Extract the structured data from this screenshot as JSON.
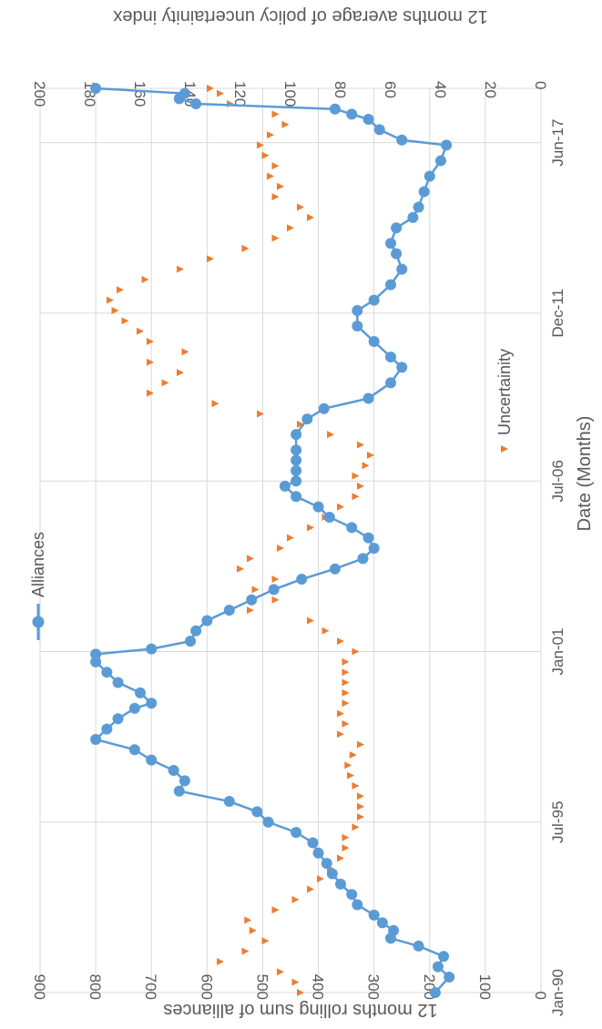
{
  "chart_data": {
    "type": "line",
    "orientation": "rotated-90",
    "xlabel": "Date (Months)",
    "x_ticks": [
      "Jan-90",
      "Jul-95",
      "Jan-01",
      "Jul-06",
      "Dec-11",
      "Jun-17"
    ],
    "x_tick_months": [
      0,
      66,
      132,
      198,
      263,
      329
    ],
    "x_range_months": [
      0,
      350
    ],
    "y_left": {
      "label": "12 months rolling sum of alliances",
      "min": 0,
      "max": 900,
      "step": 100,
      "ticks": [
        "0",
        "100",
        "200",
        "300",
        "400",
        "500",
        "600",
        "700",
        "800",
        "900"
      ]
    },
    "y_right": {
      "label": "12 months average of policy  uncertainity index",
      "min": 0,
      "max": 200,
      "step": 20,
      "ticks": [
        "0",
        "20",
        "40",
        "60",
        "80",
        "100",
        "120",
        "140",
        "160",
        "180",
        "200"
      ]
    },
    "grid": true,
    "legend_position": "top-left",
    "series": [
      {
        "name": "Alliances",
        "axis": "left",
        "style": "line-circle",
        "color": "#5B9BD5",
        "points": [
          [
            0,
            190
          ],
          [
            6,
            165
          ],
          [
            10,
            185
          ],
          [
            14,
            175
          ],
          [
            18,
            220
          ],
          [
            21,
            270
          ],
          [
            24,
            265
          ],
          [
            27,
            285
          ],
          [
            30,
            300
          ],
          [
            34,
            330
          ],
          [
            38,
            340
          ],
          [
            42,
            360
          ],
          [
            46,
            375
          ],
          [
            50,
            385
          ],
          [
            54,
            400
          ],
          [
            58,
            410
          ],
          [
            62,
            440
          ],
          [
            66,
            490
          ],
          [
            70,
            510
          ],
          [
            74,
            560
          ],
          [
            78,
            650
          ],
          [
            82,
            640
          ],
          [
            86,
            660
          ],
          [
            90,
            700
          ],
          [
            94,
            730
          ],
          [
            98,
            800
          ],
          [
            102,
            780
          ],
          [
            106,
            760
          ],
          [
            110,
            730
          ],
          [
            112,
            700
          ],
          [
            116,
            720
          ],
          [
            120,
            760
          ],
          [
            124,
            780
          ],
          [
            128,
            800
          ],
          [
            131,
            800
          ],
          [
            133,
            700
          ],
          [
            136,
            630
          ],
          [
            140,
            620
          ],
          [
            144,
            600
          ],
          [
            148,
            560
          ],
          [
            152,
            520
          ],
          [
            156,
            480
          ],
          [
            160,
            430
          ],
          [
            164,
            370
          ],
          [
            168,
            320
          ],
          [
            172,
            300
          ],
          [
            176,
            310
          ],
          [
            180,
            340
          ],
          [
            184,
            380
          ],
          [
            188,
            400
          ],
          [
            192,
            440
          ],
          [
            196,
            460
          ],
          [
            198,
            440
          ],
          [
            202,
            440
          ],
          [
            206,
            440
          ],
          [
            210,
            440
          ],
          [
            216,
            440
          ],
          [
            222,
            420
          ],
          [
            226,
            390
          ],
          [
            230,
            310
          ],
          [
            236,
            270
          ],
          [
            242,
            250
          ],
          [
            246,
            270
          ],
          [
            252,
            300
          ],
          [
            258,
            330
          ],
          [
            264,
            330
          ],
          [
            268,
            300
          ],
          [
            274,
            270
          ],
          [
            280,
            250
          ],
          [
            286,
            260
          ],
          [
            290,
            270
          ],
          [
            296,
            260
          ],
          [
            300,
            230
          ],
          [
            304,
            220
          ],
          [
            310,
            210
          ],
          [
            316,
            200
          ],
          [
            322,
            180
          ],
          [
            328,
            170
          ],
          [
            330,
            250
          ],
          [
            334,
            290
          ],
          [
            338,
            310
          ],
          [
            340,
            340
          ],
          [
            342,
            370
          ],
          [
            344,
            620
          ],
          [
            346,
            650
          ],
          [
            348,
            640
          ],
          [
            350,
            800
          ]
        ]
      },
      {
        "name": "Uncertainity",
        "axis": "right",
        "style": "triangle-marker",
        "color": "#ED7D31",
        "points": [
          [
            0,
            96
          ],
          [
            4,
            98
          ],
          [
            8,
            104
          ],
          [
            12,
            128
          ],
          [
            16,
            118
          ],
          [
            20,
            110
          ],
          [
            24,
            115
          ],
          [
            28,
            117
          ],
          [
            32,
            106
          ],
          [
            36,
            98
          ],
          [
            40,
            92
          ],
          [
            44,
            88
          ],
          [
            48,
            84
          ],
          [
            52,
            80
          ],
          [
            56,
            78
          ],
          [
            60,
            78
          ],
          [
            64,
            74
          ],
          [
            68,
            72
          ],
          [
            72,
            72
          ],
          [
            76,
            72
          ],
          [
            80,
            74
          ],
          [
            84,
            76
          ],
          [
            88,
            77
          ],
          [
            92,
            75
          ],
          [
            96,
            72
          ],
          [
            100,
            80
          ],
          [
            104,
            78
          ],
          [
            108,
            80
          ],
          [
            112,
            78
          ],
          [
            116,
            78
          ],
          [
            120,
            78
          ],
          [
            124,
            78
          ],
          [
            128,
            78
          ],
          [
            132,
            74
          ],
          [
            136,
            80
          ],
          [
            140,
            86
          ],
          [
            144,
            92
          ],
          [
            148,
            116
          ],
          [
            152,
            106
          ],
          [
            156,
            114
          ],
          [
            160,
            106
          ],
          [
            164,
            120
          ],
          [
            168,
            116
          ],
          [
            172,
            104
          ],
          [
            176,
            100
          ],
          [
            180,
            92
          ],
          [
            184,
            86
          ],
          [
            188,
            80
          ],
          [
            192,
            74
          ],
          [
            196,
            72
          ],
          [
            200,
            74
          ],
          [
            204,
            70
          ],
          [
            208,
            68
          ],
          [
            212,
            72
          ],
          [
            216,
            84
          ],
          [
            220,
            96
          ],
          [
            224,
            112
          ],
          [
            228,
            130
          ],
          [
            232,
            156
          ],
          [
            236,
            150
          ],
          [
            240,
            144
          ],
          [
            244,
            156
          ],
          [
            248,
            142
          ],
          [
            252,
            156
          ],
          [
            256,
            160
          ],
          [
            260,
            166
          ],
          [
            264,
            170
          ],
          [
            268,
            172
          ],
          [
            272,
            168
          ],
          [
            276,
            158
          ],
          [
            280,
            144
          ],
          [
            284,
            132
          ],
          [
            288,
            118
          ],
          [
            292,
            106
          ],
          [
            296,
            100
          ],
          [
            300,
            92
          ],
          [
            304,
            96
          ],
          [
            308,
            106
          ],
          [
            312,
            104
          ],
          [
            316,
            108
          ],
          [
            320,
            106
          ],
          [
            324,
            110
          ],
          [
            328,
            112
          ],
          [
            332,
            108
          ],
          [
            336,
            102
          ],
          [
            340,
            106
          ],
          [
            344,
            124
          ],
          [
            348,
            128
          ],
          [
            350,
            132
          ]
        ]
      }
    ]
  }
}
